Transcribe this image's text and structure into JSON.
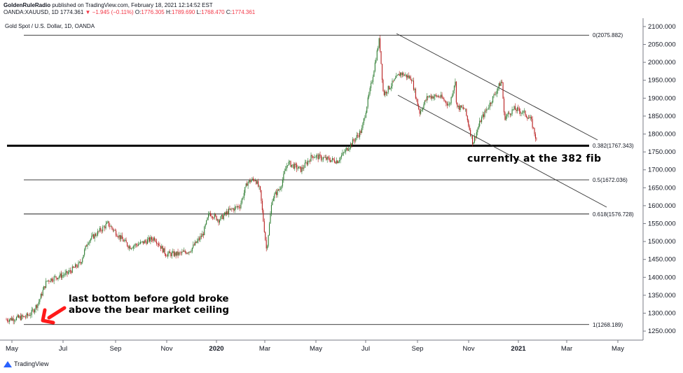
{
  "header": {
    "author": "GoldenRuleRadio",
    "published": "published on TradingView.com, February 18, 2021 12:14:52 EST",
    "symbol": "OANDA:XAUUSD, 1D",
    "last": "1774.361",
    "change": "▼ −1.945 (−0.11%)",
    "o_label": "O:",
    "o": "1776.305",
    "h_label": "H:",
    "h": "1789.690",
    "l_label": "L:",
    "l": "1768.470",
    "c_label": "C:",
    "c": "1774.361"
  },
  "symbol_title": "Gold Spot / U.S. Dollar, 1D, OANDA",
  "footer": {
    "brand": "TradingView"
  },
  "colors": {
    "up": "#2e7d32",
    "down": "#b71c1c",
    "fib": "#000000",
    "arrow": "#ff1a1a"
  },
  "chart_data": {
    "type": "candlestick",
    "x_ticks": [
      "May",
      "Jul",
      "Sep",
      "Nov",
      "2020",
      "Mar",
      "May",
      "Jul",
      "Sep",
      "Nov",
      "2021",
      "Mar",
      "May"
    ],
    "bold_ticks": [
      "2020",
      "2021"
    ],
    "y_ticks": [
      2100,
      2050,
      2000,
      1950,
      1900,
      1850,
      1800,
      1750,
      1700,
      1650,
      1600,
      1550,
      1500,
      1450,
      1400,
      1350,
      1300,
      1250
    ],
    "y_tick_labels": [
      "2100.000",
      "2050.000",
      "2000.000",
      "1950.000",
      "1900.000",
      "1850.000",
      "1800.000",
      "1750.000",
      "1700.000",
      "1650.000",
      "1600.000",
      "1550.000",
      "1500.000",
      "1450.000",
      "1400.000",
      "1350.000",
      "1300.000",
      "1250.000"
    ],
    "ylim": [
      1230,
      2110
    ],
    "fib_levels": [
      {
        "label": "0(2075.882)",
        "value": 2075.882,
        "bold": false
      },
      {
        "label": "0.382(1767.343)",
        "value": 1767.343,
        "bold": true
      },
      {
        "label": "0.5(1672.036)",
        "value": 1672.036,
        "bold": false
      },
      {
        "label": "0.618(1576.728)",
        "value": 1576.728,
        "bold": false
      },
      {
        "label": "1(1268.189)",
        "value": 1268.189,
        "bold": false
      }
    ],
    "series": [
      {
        "date": "2019-05-01",
        "close": 1282
      },
      {
        "date": "2019-05-25",
        "close": 1290
      },
      {
        "date": "2019-06-01",
        "close": 1300
      },
      {
        "date": "2019-06-10",
        "close": 1330
      },
      {
        "date": "2019-06-20",
        "close": 1390
      },
      {
        "date": "2019-07-01",
        "close": 1400
      },
      {
        "date": "2019-07-15",
        "close": 1410
      },
      {
        "date": "2019-08-01",
        "close": 1440
      },
      {
        "date": "2019-08-10",
        "close": 1500
      },
      {
        "date": "2019-08-20",
        "close": 1520
      },
      {
        "date": "2019-09-04",
        "close": 1550
      },
      {
        "date": "2019-09-20",
        "close": 1510
      },
      {
        "date": "2019-10-01",
        "close": 1485
      },
      {
        "date": "2019-10-15",
        "close": 1495
      },
      {
        "date": "2019-11-01",
        "close": 1510
      },
      {
        "date": "2019-11-15",
        "close": 1465
      },
      {
        "date": "2019-12-01",
        "close": 1465
      },
      {
        "date": "2019-12-15",
        "close": 1475
      },
      {
        "date": "2019-12-31",
        "close": 1520
      },
      {
        "date": "2020-01-08",
        "close": 1580
      },
      {
        "date": "2020-01-20",
        "close": 1560
      },
      {
        "date": "2020-02-01",
        "close": 1585
      },
      {
        "date": "2020-02-15",
        "close": 1600
      },
      {
        "date": "2020-02-24",
        "close": 1665
      },
      {
        "date": "2020-03-05",
        "close": 1675
      },
      {
        "date": "2020-03-11",
        "close": 1640
      },
      {
        "date": "2020-03-19",
        "close": 1475
      },
      {
        "date": "2020-03-26",
        "close": 1620
      },
      {
        "date": "2020-04-05",
        "close": 1650
      },
      {
        "date": "2020-04-14",
        "close": 1720
      },
      {
        "date": "2020-05-01",
        "close": 1700
      },
      {
        "date": "2020-05-15",
        "close": 1740
      },
      {
        "date": "2020-06-01",
        "close": 1730
      },
      {
        "date": "2020-06-15",
        "close": 1725
      },
      {
        "date": "2020-07-01",
        "close": 1770
      },
      {
        "date": "2020-07-15",
        "close": 1810
      },
      {
        "date": "2020-07-27",
        "close": 1940
      },
      {
        "date": "2020-08-06",
        "close": 2065
      },
      {
        "date": "2020-08-11",
        "close": 1910
      },
      {
        "date": "2020-08-20",
        "close": 1935
      },
      {
        "date": "2020-09-01",
        "close": 1970
      },
      {
        "date": "2020-09-15",
        "close": 1955
      },
      {
        "date": "2020-09-25",
        "close": 1860
      },
      {
        "date": "2020-10-05",
        "close": 1905
      },
      {
        "date": "2020-10-20",
        "close": 1905
      },
      {
        "date": "2020-11-01",
        "close": 1880
      },
      {
        "date": "2020-11-08",
        "close": 1950
      },
      {
        "date": "2020-11-10",
        "close": 1875
      },
      {
        "date": "2020-11-20",
        "close": 1870
      },
      {
        "date": "2020-11-30",
        "close": 1775
      },
      {
        "date": "2020-12-10",
        "close": 1840
      },
      {
        "date": "2020-12-20",
        "close": 1880
      },
      {
        "date": "2021-01-05",
        "close": 1950
      },
      {
        "date": "2021-01-08",
        "close": 1845
      },
      {
        "date": "2021-01-20",
        "close": 1870
      },
      {
        "date": "2021-02-01",
        "close": 1860
      },
      {
        "date": "2021-02-10",
        "close": 1840
      },
      {
        "date": "2021-02-18",
        "close": 1774
      }
    ],
    "annotations": [
      {
        "text": "currently at the 382 fib"
      },
      {
        "text": "last bottom before gold broke"
      },
      {
        "text": "above the bear market ceiling"
      }
    ]
  }
}
